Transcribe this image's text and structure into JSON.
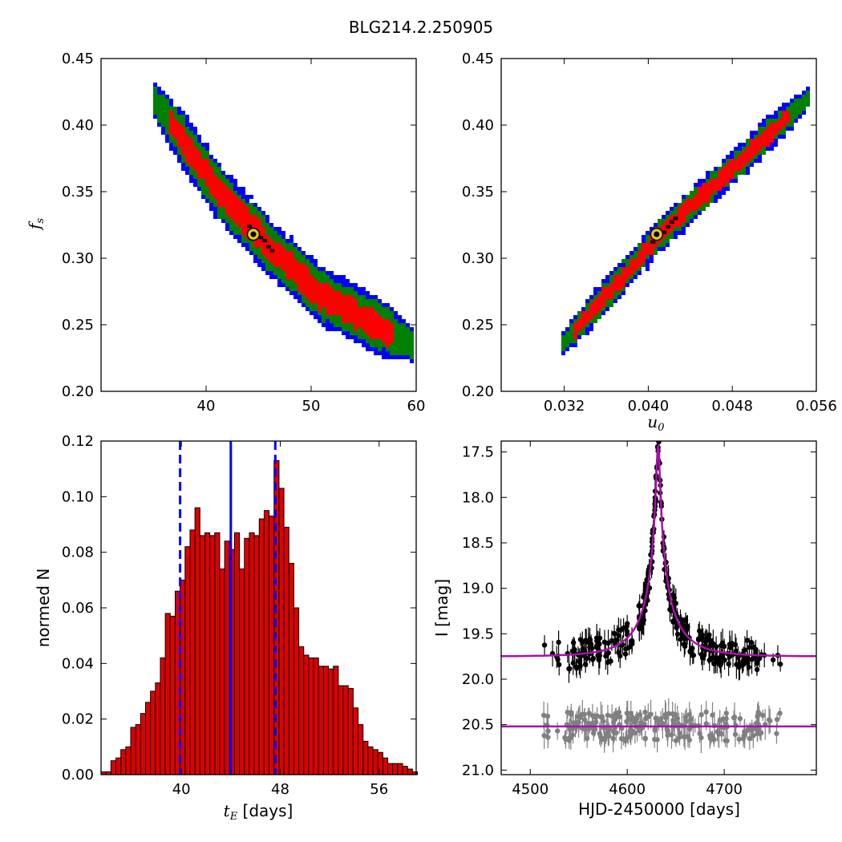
{
  "suptitle": "BLG214.2.250905",
  "colors": {
    "sigma1": "#ff0000",
    "sigma2": "#008000",
    "sigma3": "#0000ff",
    "chain": "#000000",
    "best_marker": "#e1c829",
    "hist_bar": "#dd0000",
    "hist_lines": "#0000ff",
    "model": "#aa11aa",
    "data_main": "#000000",
    "data_offset": "#808080"
  },
  "chart_data": [
    {
      "id": "fs_vs_tE",
      "type": "heatmap",
      "title": "",
      "xlabel": "",
      "ylabel": "f_s",
      "xlim": [
        30,
        60
      ],
      "ylim": [
        0.2,
        0.45
      ],
      "xticks": [
        40,
        50,
        60
      ],
      "xtick_labels": [
        "40",
        "50",
        "60"
      ],
      "yticks": [
        0.2,
        0.25,
        0.3,
        0.35,
        0.4,
        0.45
      ],
      "ytick_labels": [
        "0.20",
        "0.25",
        "0.30",
        "0.35",
        "0.40",
        "0.45"
      ],
      "region": {
        "center_line": [
          [
            35.0,
            0.42
          ],
          [
            41.0,
            0.352
          ],
          [
            46.0,
            0.308
          ],
          [
            51.0,
            0.272
          ],
          [
            55.0,
            0.255
          ],
          [
            59.7,
            0.235
          ]
        ],
        "half_widths_fs": {
          "one_sigma": 0.01,
          "two_sigma": 0.017,
          "three_sigma": 0.022
        }
      },
      "best_fit": {
        "x": 44.5,
        "y": 0.318
      }
    },
    {
      "id": "fs_vs_u0",
      "type": "heatmap",
      "title": "",
      "xlabel": "u_0",
      "ylabel": "",
      "xlim": [
        0.026,
        0.056
      ],
      "ylim": [
        0.2,
        0.45
      ],
      "xticks": [
        0.032,
        0.04,
        0.048,
        0.056
      ],
      "xtick_labels": [
        "0.032",
        "0.040",
        "0.048",
        "0.056"
      ],
      "yticks": [
        0.2,
        0.25,
        0.3,
        0.35,
        0.4,
        0.45
      ],
      "ytick_labels": [
        "0.20",
        "0.25",
        "0.30",
        "0.35",
        "0.40",
        "0.45"
      ],
      "region": {
        "center_line": [
          [
            0.0316,
            0.233
          ],
          [
            0.0412,
            0.318
          ],
          [
            0.0552,
            0.42
          ]
        ],
        "half_widths_fs": {
          "one_sigma": 0.006,
          "two_sigma": 0.01,
          "three_sigma": 0.013
        }
      },
      "best_fit": {
        "x": 0.0408,
        "y": 0.318
      }
    },
    {
      "id": "tE_histogram",
      "type": "bar",
      "title": "",
      "xlabel": "t_E [days]",
      "ylabel": "normed N",
      "xlim": [
        33.5,
        59.0
      ],
      "ylim": [
        0.0,
        0.12
      ],
      "xticks": [
        40,
        48,
        56
      ],
      "xtick_labels": [
        "40",
        "48",
        "56"
      ],
      "yticks": [
        0.0,
        0.02,
        0.04,
        0.06,
        0.08,
        0.1,
        0.12
      ],
      "ytick_labels": [
        "0.00",
        "0.02",
        "0.04",
        "0.06",
        "0.08",
        "0.10",
        "0.12"
      ],
      "bin_start": 33.5,
      "bin_width": 0.4,
      "values": [
        0.001,
        0.001,
        0.005,
        0.006,
        0.009,
        0.01,
        0.017,
        0.018,
        0.022,
        0.026,
        0.03,
        0.033,
        0.042,
        0.058,
        0.057,
        0.066,
        0.07,
        0.082,
        0.088,
        0.096,
        0.086,
        0.087,
        0.086,
        0.087,
        0.074,
        0.084,
        0.081,
        0.087,
        0.074,
        0.085,
        0.087,
        0.086,
        0.092,
        0.095,
        0.093,
        0.113,
        0.103,
        0.089,
        0.076,
        0.06,
        0.046,
        0.043,
        0.042,
        0.042,
        0.039,
        0.039,
        0.038,
        0.039,
        0.032,
        0.032,
        0.031,
        0.024,
        0.018,
        0.012,
        0.01,
        0.009,
        0.008,
        0.006,
        0.004,
        0.004,
        0.004,
        0.003,
        0.002,
        0.001
      ],
      "median_line": 44.0,
      "interval_lines": [
        39.9,
        47.6
      ]
    },
    {
      "id": "light_curve",
      "type": "line",
      "title": "",
      "xlabel": "HJD-2450000 [days]",
      "ylabel": "I [mag]",
      "xlim": [
        4470,
        4795
      ],
      "ylim": [
        21.05,
        17.38
      ],
      "inverted_y": true,
      "xticks": [
        4500,
        4600,
        4700
      ],
      "xtick_labels": [
        "4500",
        "4600",
        "4700"
      ],
      "yticks": [
        17.5,
        18.0,
        18.5,
        19.0,
        19.5,
        20.0,
        20.5,
        21.0
      ],
      "ytick_labels": [
        "17.5",
        "18.0",
        "18.5",
        "19.0",
        "19.5",
        "20.0",
        "20.5",
        "21.0"
      ],
      "model": {
        "t0": 4631.8,
        "u0": 0.0408,
        "tE": 44.5,
        "fs": 0.318,
        "baseline_mag": 19.75
      },
      "offset_baseline_mag": 20.52,
      "data_spans": {
        "main": [
          4512,
          4760
        ],
        "offset": [
          4512,
          4760
        ]
      }
    }
  ]
}
